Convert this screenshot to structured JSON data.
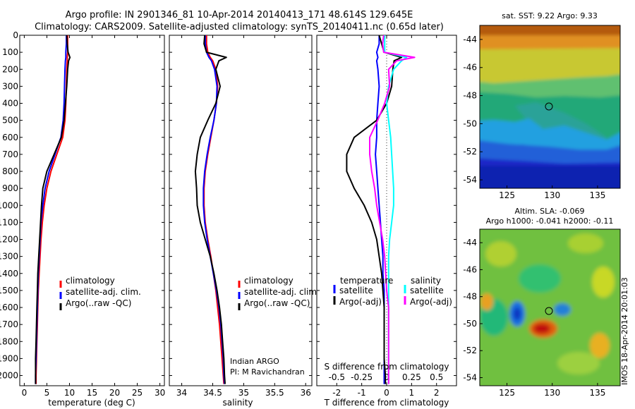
{
  "header": {
    "title_line1": "Argo profile: IN 2901346_81 10-Apr-2014 20140413_171 48.614S 129.645E",
    "title_line2": "Climatology: CARS2009. Satellite-adjusted climatology: synTS_20140411.nc (0.65d later)"
  },
  "colors": {
    "climatology": "#ff0000",
    "satellite": "#0000ff",
    "argo": "#000000",
    "salinity_satellite": "#00ffff",
    "salinity_argo": "#ff00ff"
  },
  "depth_ticks": [
    "0",
    "100",
    "200",
    "300",
    "400",
    "500",
    "600",
    "700",
    "800",
    "900",
    "1000",
    "1100",
    "1200",
    "1300",
    "1400",
    "1500",
    "1600",
    "1700",
    "1800",
    "1900",
    "2000"
  ],
  "chart_data": [
    {
      "type": "line",
      "name": "temperature-profile",
      "xlabel": "temperature (deg C)",
      "ylabel": "",
      "xlim": [
        -1,
        31
      ],
      "ylim": [
        2060,
        0
      ],
      "x_ticks": [
        "0",
        "5",
        "10",
        "15",
        "20",
        "25",
        "30"
      ],
      "legend": [
        "climatology",
        "satellite-adj. clim.",
        "Argo(..raw -QC)"
      ],
      "legend_position": "lower-left",
      "y": [
        0,
        50,
        100,
        130,
        150,
        200,
        300,
        400,
        500,
        600,
        700,
        800,
        900,
        1000,
        1100,
        1200,
        1300,
        1400,
        1500,
        1600,
        1700,
        1800,
        1900,
        2000,
        2050
      ],
      "series": [
        {
          "name": "climatology",
          "x": [
            9.6,
            9.6,
            9.6,
            9.5,
            9.5,
            9.4,
            9.3,
            9.2,
            9.0,
            8.5,
            7.2,
            5.9,
            5.0,
            4.4,
            4.0,
            3.7,
            3.5,
            3.3,
            3.1,
            3.0,
            2.9,
            2.8,
            2.7,
            2.6,
            2.6
          ]
        },
        {
          "name": "satellite-adj. clim.",
          "x": [
            9.3,
            9.3,
            9.2,
            9.2,
            9.1,
            9.0,
            8.9,
            8.8,
            8.6,
            8.1,
            6.8,
            5.5,
            4.6,
            4.1,
            3.7,
            3.5,
            3.3,
            3.1,
            3.0,
            2.9,
            2.8,
            2.7,
            2.6,
            2.5,
            2.5
          ]
        },
        {
          "name": "Argo(..raw -QC)",
          "x": [
            9.4,
            9.5,
            9.7,
            10.1,
            9.8,
            9.6,
            9.4,
            9.1,
            8.8,
            8.2,
            6.6,
            5.0,
            4.1,
            3.8,
            3.6,
            3.4,
            3.2,
            3.0,
            2.9,
            2.8,
            2.7,
            2.6,
            2.5,
            2.5,
            2.5
          ]
        }
      ]
    },
    {
      "type": "line",
      "name": "salinity-profile",
      "xlabel": "salinity",
      "ylabel": "",
      "xlim": [
        33.8,
        36.1
      ],
      "ylim": [
        2060,
        0
      ],
      "x_ticks": [
        "34",
        "34.5",
        "35",
        "35.5",
        "36"
      ],
      "legend": [
        "climatology",
        "satellite-adj. clim.",
        "Argo(..raw -QC)"
      ],
      "legend_position": "lower-right",
      "annotation_line1": "Indian ARGO",
      "annotation_line2": "PI: M Ravichandran",
      "y": [
        0,
        50,
        100,
        130,
        150,
        200,
        300,
        400,
        500,
        600,
        700,
        800,
        900,
        1000,
        1100,
        1200,
        1300,
        1400,
        1500,
        1600,
        1700,
        1800,
        1900,
        2000,
        2050
      ],
      "series": [
        {
          "name": "climatology",
          "x": [
            34.4,
            34.4,
            34.42,
            34.46,
            34.5,
            34.55,
            34.58,
            34.56,
            34.52,
            34.47,
            34.42,
            34.38,
            34.36,
            34.36,
            34.38,
            34.42,
            34.47,
            34.51,
            34.55,
            34.58,
            34.61,
            34.63,
            34.65,
            34.67,
            34.68
          ]
        },
        {
          "name": "satellite-adj. clim.",
          "x": [
            34.38,
            34.38,
            34.4,
            34.44,
            34.48,
            34.53,
            34.57,
            34.56,
            34.52,
            34.46,
            34.41,
            34.37,
            34.35,
            34.35,
            34.37,
            34.41,
            34.46,
            34.51,
            34.56,
            34.6,
            34.63,
            34.65,
            34.67,
            34.68,
            34.69
          ]
        },
        {
          "name": "Argo(..raw -QC)",
          "x": [
            34.37,
            34.36,
            34.4,
            34.72,
            34.6,
            34.55,
            34.62,
            34.55,
            34.42,
            34.3,
            34.25,
            34.22,
            34.24,
            34.25,
            34.3,
            34.38,
            34.46,
            34.52,
            34.57,
            34.61,
            34.64,
            34.66,
            34.68,
            34.69,
            34.7
          ]
        }
      ]
    },
    {
      "type": "line",
      "name": "difference-profile",
      "xlabel": "T difference from climatology",
      "xlabel_top": "S difference from climatology",
      "ylabel": "",
      "xlim": [
        -2.8,
        2.8
      ],
      "ylim": [
        2060,
        0
      ],
      "x_ticks": [
        "-2",
        "-1",
        "0",
        "1",
        "2"
      ],
      "s_ticks": [
        "-0.5",
        "-0.25",
        "0",
        "0.25",
        "0.5"
      ],
      "legend_temperature": "temperature",
      "legend_salinity": "salinity",
      "legend_satellite": "satellite",
      "legend_argo": "Argo(-adj)",
      "y": [
        0,
        50,
        100,
        130,
        150,
        200,
        300,
        400,
        500,
        600,
        700,
        800,
        900,
        1000,
        1100,
        1200,
        1300,
        1400,
        1500,
        1600,
        1700,
        1800,
        1900,
        2000,
        2050
      ],
      "series": [
        {
          "name": "temperature satellite",
          "x": [
            -0.3,
            -0.3,
            -0.4,
            -0.35,
            -0.4,
            -0.35,
            -0.3,
            -0.35,
            -0.4,
            -0.4,
            -0.45,
            -0.4,
            -0.35,
            -0.3,
            -0.25,
            -0.2,
            -0.15,
            -0.15,
            -0.1,
            -0.1,
            -0.1,
            -0.1,
            -0.1,
            -0.1,
            -0.1
          ]
        },
        {
          "name": "temperature Argo(-adj)",
          "x": [
            -0.3,
            -0.2,
            -0.1,
            0.6,
            0.3,
            0.25,
            0.2,
            0.0,
            -0.4,
            -1.3,
            -1.6,
            -1.6,
            -1.3,
            -0.9,
            -0.6,
            -0.4,
            -0.3,
            -0.2,
            -0.15,
            -0.1,
            -0.1,
            -0.1,
            -0.1,
            -0.05,
            -0.05
          ]
        },
        {
          "name": "salinity satellite",
          "x": [
            -0.02,
            -0.02,
            -0.02,
            0.2,
            0.15,
            0.07,
            0.02,
            0.0,
            0.02,
            0.04,
            0.05,
            0.06,
            0.07,
            0.07,
            0.05,
            0.03,
            0.02,
            0.02,
            0.02,
            0.02,
            0.02,
            0.02,
            0.02,
            0.02,
            0.02
          ]
        },
        {
          "name": "salinity Argo(-adj)",
          "x": [
            -0.03,
            -0.04,
            -0.03,
            0.28,
            0.1,
            0.02,
            0.03,
            -0.02,
            -0.09,
            -0.17,
            -0.17,
            -0.15,
            -0.12,
            -0.1,
            -0.07,
            -0.04,
            -0.02,
            -0.01,
            0.0,
            0.02,
            0.02,
            0.02,
            0.02,
            0.02,
            0.02
          ]
        }
      ]
    }
  ],
  "map_top": {
    "title": "sat. SST: 9.22  Argo: 9.33",
    "x_ticks": [
      "125",
      "130",
      "135"
    ],
    "y_ticks": [
      "-44",
      "-46",
      "-48",
      "-50",
      "-52",
      "-54"
    ]
  },
  "map_bottom": {
    "title_line1": "Altim. SLA: -0.069",
    "title_line2": "Argo h1000: -0.041 h2000: -0.11",
    "x_ticks": [
      "125",
      "130",
      "135"
    ],
    "y_ticks": [
      "-44",
      "-46",
      "-48",
      "-50",
      "-52",
      "-54"
    ],
    "side_label": "IMOS 18-Apr-2014 20:01:03"
  }
}
